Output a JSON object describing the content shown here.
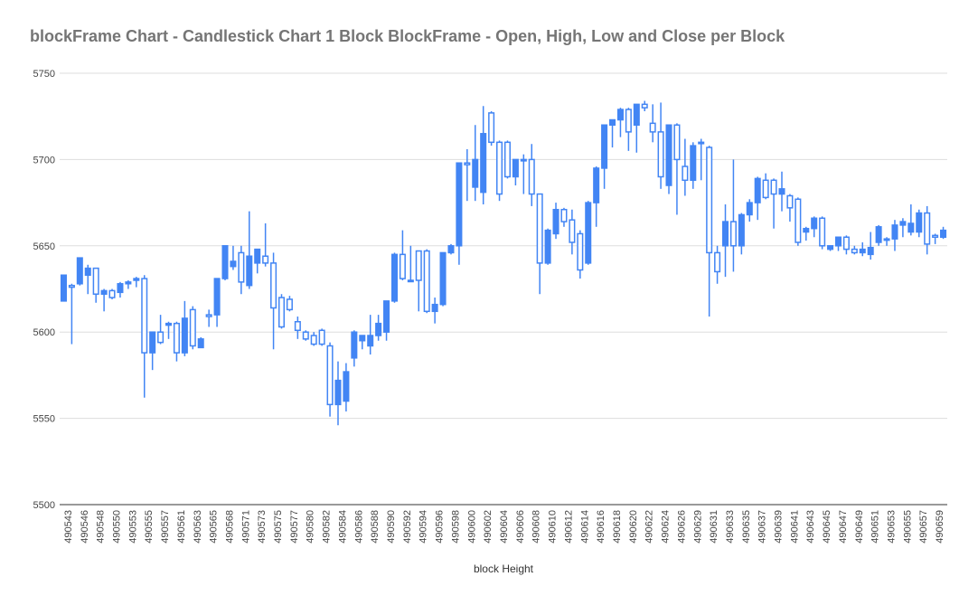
{
  "chart_data": {
    "type": "candlestick",
    "title": "blockFrame Chart - Candlestick Chart 1 Block BlockFrame  - Open, High, Low and Close per Block",
    "xlabel": "block Height",
    "ylabel": "",
    "ylim": [
      5500,
      5750
    ],
    "yticks": [
      5500,
      5550,
      5600,
      5650,
      5700,
      5750
    ],
    "grid": true,
    "colors": {
      "up": "#4285f4",
      "down": "#4285f4",
      "grid": "#dddddd",
      "axis": "#333333"
    },
    "x_tick_labels": [
      "490543",
      "490546",
      "490548",
      "490550",
      "490553",
      "490555",
      "490557",
      "490561",
      "490563",
      "490565",
      "490568",
      "490571",
      "490573",
      "490575",
      "490577",
      "490580",
      "490582",
      "490584",
      "490586",
      "490588",
      "490590",
      "490592",
      "490594",
      "490596",
      "490598",
      "490600",
      "490602",
      "490604",
      "490606",
      "490608",
      "490610",
      "490612",
      "490614",
      "490616",
      "490618",
      "490620",
      "490622",
      "490624",
      "490626",
      "490629",
      "490631",
      "490633",
      "490635",
      "490637",
      "490639",
      "490641",
      "490643",
      "490645",
      "490647",
      "490649",
      "490651",
      "490653",
      "490655",
      "490657",
      "490659"
    ],
    "candles": [
      {
        "o": 5618,
        "h": 5633,
        "l": 5618,
        "c": 5633
      },
      {
        "o": 5627,
        "h": 5628,
        "l": 5593,
        "c": 5626
      },
      {
        "o": 5628,
        "h": 5643,
        "l": 5627,
        "c": 5643
      },
      {
        "o": 5633,
        "h": 5639,
        "l": 5622,
        "c": 5637
      },
      {
        "o": 5637,
        "h": 5637,
        "l": 5617,
        "c": 5622
      },
      {
        "o": 5622,
        "h": 5625,
        "l": 5612,
        "c": 5624
      },
      {
        "o": 5624,
        "h": 5625,
        "l": 5619,
        "c": 5620
      },
      {
        "o": 5623,
        "h": 5629,
        "l": 5620,
        "c": 5628
      },
      {
        "o": 5628,
        "h": 5630,
        "l": 5625,
        "c": 5629
      },
      {
        "o": 5630,
        "h": 5632,
        "l": 5626,
        "c": 5631
      },
      {
        "o": 5631,
        "h": 5633,
        "l": 5562,
        "c": 5588
      },
      {
        "o": 5588,
        "h": 5600,
        "l": 5578,
        "c": 5600
      },
      {
        "o": 5600,
        "h": 5610,
        "l": 5593,
        "c": 5594
      },
      {
        "o": 5604,
        "h": 5606,
        "l": 5596,
        "c": 5605
      },
      {
        "o": 5605,
        "h": 5606,
        "l": 5583,
        "c": 5588
      },
      {
        "o": 5588,
        "h": 5618,
        "l": 5586,
        "c": 5608
      },
      {
        "o": 5613,
        "h": 5615,
        "l": 5590,
        "c": 5592
      },
      {
        "o": 5591,
        "h": 5597,
        "l": 5591,
        "c": 5596
      },
      {
        "o": 5610,
        "h": 5613,
        "l": 5603,
        "c": 5609
      },
      {
        "o": 5610,
        "h": 5631,
        "l": 5603,
        "c": 5631
      },
      {
        "o": 5631,
        "h": 5650,
        "l": 5630,
        "c": 5650
      },
      {
        "o": 5638,
        "h": 5650,
        "l": 5636,
        "c": 5641
      },
      {
        "o": 5646,
        "h": 5650,
        "l": 5622,
        "c": 5629
      },
      {
        "o": 5627,
        "h": 5670,
        "l": 5625,
        "c": 5644
      },
      {
        "o": 5640,
        "h": 5648,
        "l": 5634,
        "c": 5648
      },
      {
        "o": 5644,
        "h": 5663,
        "l": 5638,
        "c": 5640
      },
      {
        "o": 5640,
        "h": 5646,
        "l": 5590,
        "c": 5614
      },
      {
        "o": 5620,
        "h": 5622,
        "l": 5602,
        "c": 5603
      },
      {
        "o": 5619,
        "h": 5621,
        "l": 5612,
        "c": 5613
      },
      {
        "o": 5606,
        "h": 5609,
        "l": 5596,
        "c": 5601
      },
      {
        "o": 5600,
        "h": 5601,
        "l": 5595,
        "c": 5596
      },
      {
        "o": 5598,
        "h": 5600,
        "l": 5592,
        "c": 5593
      },
      {
        "o": 5601,
        "h": 5602,
        "l": 5592,
        "c": 5593
      },
      {
        "o": 5592,
        "h": 5594,
        "l": 5551,
        "c": 5558
      },
      {
        "o": 5558,
        "h": 5583,
        "l": 5546,
        "c": 5572
      },
      {
        "o": 5560,
        "h": 5582,
        "l": 5554,
        "c": 5577
      },
      {
        "o": 5585,
        "h": 5601,
        "l": 5580,
        "c": 5600
      },
      {
        "o": 5595,
        "h": 5598,
        "l": 5590,
        "c": 5598
      },
      {
        "o": 5592,
        "h": 5610,
        "l": 5587,
        "c": 5598
      },
      {
        "o": 5598,
        "h": 5610,
        "l": 5595,
        "c": 5605
      },
      {
        "o": 5600,
        "h": 5618,
        "l": 5595,
        "c": 5618
      },
      {
        "o": 5618,
        "h": 5646,
        "l": 5617,
        "c": 5645
      },
      {
        "o": 5645,
        "h": 5659,
        "l": 5630,
        "c": 5631
      },
      {
        "o": 5630,
        "h": 5650,
        "l": 5629,
        "c": 5630
      },
      {
        "o": 5647,
        "h": 5647,
        "l": 5612,
        "c": 5630
      },
      {
        "o": 5647,
        "h": 5648,
        "l": 5611,
        "c": 5612
      },
      {
        "o": 5612,
        "h": 5620,
        "l": 5605,
        "c": 5616
      },
      {
        "o": 5616,
        "h": 5646,
        "l": 5615,
        "c": 5646
      },
      {
        "o": 5646,
        "h": 5651,
        "l": 5645,
        "c": 5650
      },
      {
        "o": 5650,
        "h": 5698,
        "l": 5639,
        "c": 5698
      },
      {
        "o": 5698,
        "h": 5706,
        "l": 5676,
        "c": 5697
      },
      {
        "o": 5684,
        "h": 5720,
        "l": 5676,
        "c": 5700
      },
      {
        "o": 5681,
        "h": 5731,
        "l": 5674,
        "c": 5715
      },
      {
        "o": 5727,
        "h": 5728,
        "l": 5708,
        "c": 5710
      },
      {
        "o": 5710,
        "h": 5711,
        "l": 5676,
        "c": 5680
      },
      {
        "o": 5710,
        "h": 5711,
        "l": 5689,
        "c": 5690
      },
      {
        "o": 5690,
        "h": 5700,
        "l": 5685,
        "c": 5700
      },
      {
        "o": 5700,
        "h": 5703,
        "l": 5680,
        "c": 5700
      },
      {
        "o": 5700,
        "h": 5709,
        "l": 5673,
        "c": 5680
      },
      {
        "o": 5680,
        "h": 5680,
        "l": 5622,
        "c": 5640
      },
      {
        "o": 5640,
        "h": 5660,
        "l": 5639,
        "c": 5659
      },
      {
        "o": 5657,
        "h": 5675,
        "l": 5654,
        "c": 5671
      },
      {
        "o": 5671,
        "h": 5672,
        "l": 5661,
        "c": 5664
      },
      {
        "o": 5665,
        "h": 5671,
        "l": 5645,
        "c": 5652
      },
      {
        "o": 5657,
        "h": 5659,
        "l": 5631,
        "c": 5636
      },
      {
        "o": 5640,
        "h": 5676,
        "l": 5639,
        "c": 5675
      },
      {
        "o": 5675,
        "h": 5696,
        "l": 5661,
        "c": 5695
      },
      {
        "o": 5695,
        "h": 5720,
        "l": 5683,
        "c": 5720
      },
      {
        "o": 5720,
        "h": 5723,
        "l": 5707,
        "c": 5723
      },
      {
        "o": 5723,
        "h": 5730,
        "l": 5713,
        "c": 5729
      },
      {
        "o": 5729,
        "h": 5730,
        "l": 5705,
        "c": 5716
      },
      {
        "o": 5720,
        "h": 5732,
        "l": 5704,
        "c": 5732
      },
      {
        "o": 5732,
        "h": 5734,
        "l": 5728,
        "c": 5730
      },
      {
        "o": 5721,
        "h": 5732,
        "l": 5710,
        "c": 5716
      },
      {
        "o": 5716,
        "h": 5733,
        "l": 5683,
        "c": 5690
      },
      {
        "o": 5685,
        "h": 5720,
        "l": 5680,
        "c": 5720
      },
      {
        "o": 5720,
        "h": 5721,
        "l": 5668,
        "c": 5700
      },
      {
        "o": 5696,
        "h": 5712,
        "l": 5679,
        "c": 5688
      },
      {
        "o": 5688,
        "h": 5710,
        "l": 5683,
        "c": 5708
      },
      {
        "o": 5710,
        "h": 5712,
        "l": 5688,
        "c": 5710
      },
      {
        "o": 5707,
        "h": 5708,
        "l": 5609,
        "c": 5646
      },
      {
        "o": 5646,
        "h": 5650,
        "l": 5628,
        "c": 5635
      },
      {
        "o": 5650,
        "h": 5674,
        "l": 5632,
        "c": 5664
      },
      {
        "o": 5664,
        "h": 5700,
        "l": 5635,
        "c": 5650
      },
      {
        "o": 5650,
        "h": 5669,
        "l": 5645,
        "c": 5668
      },
      {
        "o": 5668,
        "h": 5677,
        "l": 5664,
        "c": 5675
      },
      {
        "o": 5675,
        "h": 5690,
        "l": 5665,
        "c": 5689
      },
      {
        "o": 5688,
        "h": 5692,
        "l": 5677,
        "c": 5678
      },
      {
        "o": 5688,
        "h": 5689,
        "l": 5660,
        "c": 5680
      },
      {
        "o": 5680,
        "h": 5693,
        "l": 5670,
        "c": 5683
      },
      {
        "o": 5679,
        "h": 5680,
        "l": 5664,
        "c": 5672
      },
      {
        "o": 5677,
        "h": 5678,
        "l": 5650,
        "c": 5652
      },
      {
        "o": 5658,
        "h": 5661,
        "l": 5653,
        "c": 5660
      },
      {
        "o": 5660,
        "h": 5667,
        "l": 5655,
        "c": 5666
      },
      {
        "o": 5666,
        "h": 5667,
        "l": 5648,
        "c": 5650
      },
      {
        "o": 5648,
        "h": 5650,
        "l": 5647,
        "c": 5650
      },
      {
        "o": 5650,
        "h": 5655,
        "l": 5647,
        "c": 5655
      },
      {
        "o": 5655,
        "h": 5656,
        "l": 5645,
        "c": 5648
      },
      {
        "o": 5648,
        "h": 5650,
        "l": 5645,
        "c": 5646
      },
      {
        "o": 5646,
        "h": 5652,
        "l": 5644,
        "c": 5648
      },
      {
        "o": 5645,
        "h": 5658,
        "l": 5642,
        "c": 5649
      },
      {
        "o": 5652,
        "h": 5662,
        "l": 5650,
        "c": 5661
      },
      {
        "o": 5654,
        "h": 5655,
        "l": 5650,
        "c": 5654
      },
      {
        "o": 5654,
        "h": 5665,
        "l": 5647,
        "c": 5662
      },
      {
        "o": 5662,
        "h": 5666,
        "l": 5655,
        "c": 5664
      },
      {
        "o": 5658,
        "h": 5674,
        "l": 5656,
        "c": 5663
      },
      {
        "o": 5658,
        "h": 5671,
        "l": 5655,
        "c": 5669
      },
      {
        "o": 5669,
        "h": 5673,
        "l": 5645,
        "c": 5651
      },
      {
        "o": 5656,
        "h": 5657,
        "l": 5651,
        "c": 5655
      },
      {
        "o": 5655,
        "h": 5661,
        "l": 5654,
        "c": 5659
      }
    ]
  }
}
